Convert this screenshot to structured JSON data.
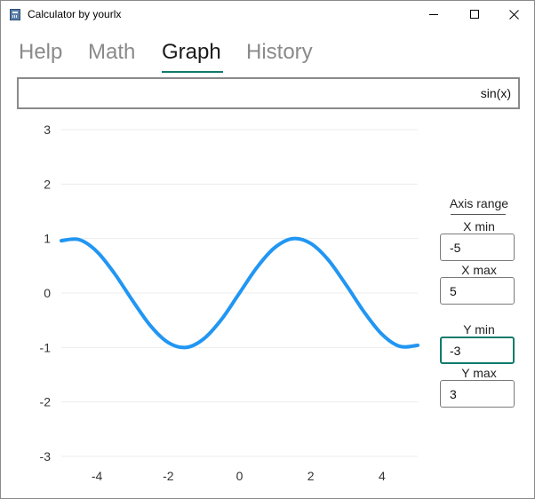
{
  "window": {
    "title": "Calculator by yourlx",
    "controls": [
      "minimize-icon",
      "maximize-icon",
      "close-icon"
    ]
  },
  "tabs": [
    {
      "label": "Help",
      "active": false
    },
    {
      "label": "Math",
      "active": false
    },
    {
      "label": "Graph",
      "active": true
    },
    {
      "label": "History",
      "active": false
    }
  ],
  "expression": {
    "value": "sin(x)"
  },
  "axis_range": {
    "title": "Axis range",
    "x_min": {
      "label": "X min",
      "value": "-5"
    },
    "x_max": {
      "label": "X max",
      "value": "5"
    },
    "y_min": {
      "label": "Y min",
      "value": "-3",
      "focused": true
    },
    "y_max": {
      "label": "Y max",
      "value": "3"
    }
  },
  "colors": {
    "accent": "#0f7b6c",
    "curve": "#2196f3",
    "grid": "#ececec"
  },
  "chart_data": {
    "type": "line",
    "function": "sin(x)",
    "xlim": [
      -5,
      5
    ],
    "ylim": [
      -3,
      3
    ],
    "x_ticks": [
      "-4",
      "-2",
      "0",
      "2",
      "4"
    ],
    "y_ticks": [
      "3",
      "2",
      "1",
      "0",
      "-1",
      "-2",
      "-3"
    ],
    "grid": true,
    "series": [
      {
        "x": [
          -5,
          -4.5,
          -4,
          -3.5,
          -3,
          -2.5,
          -2,
          -1.5,
          -1,
          -0.5,
          0,
          0.5,
          1,
          1.5,
          2,
          2.5,
          3,
          3.5,
          4,
          4.5,
          5
        ],
        "y": [
          0.96,
          0.98,
          0.76,
          0.35,
          -0.14,
          -0.6,
          -0.91,
          -1.0,
          -0.84,
          -0.48,
          0,
          0.48,
          0.84,
          1.0,
          0.91,
          0.6,
          0.14,
          -0.35,
          -0.76,
          -0.98,
          -0.96
        ]
      }
    ]
  }
}
